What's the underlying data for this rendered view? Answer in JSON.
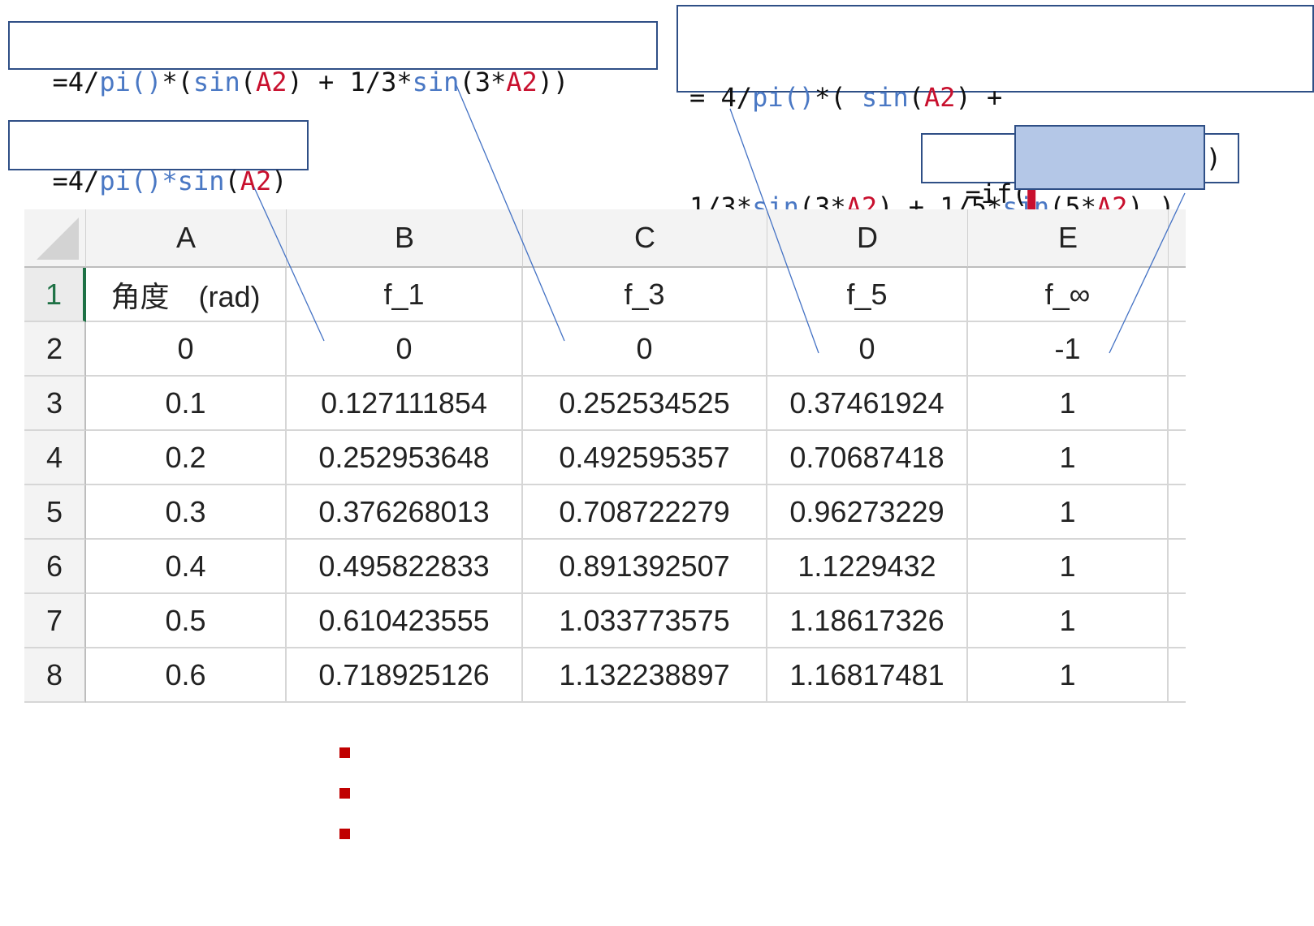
{
  "callouts": {
    "f1": [
      {
        "t": "=4/",
        "c": ""
      },
      {
        "t": "pi()*sin",
        "c": "fn"
      },
      {
        "t": "(",
        "c": ""
      },
      {
        "t": "A2",
        "c": "ref"
      },
      {
        "t": ")",
        "c": ""
      }
    ],
    "f3": [
      {
        "t": "=4/",
        "c": ""
      },
      {
        "t": "pi()",
        "c": "fn"
      },
      {
        "t": "*(",
        "c": ""
      },
      {
        "t": "sin",
        "c": "fn"
      },
      {
        "t": "(",
        "c": ""
      },
      {
        "t": "A2",
        "c": "ref"
      },
      {
        "t": ") + 1/3*",
        "c": ""
      },
      {
        "t": "sin",
        "c": "fn"
      },
      {
        "t": "(3*",
        "c": ""
      },
      {
        "t": "A2",
        "c": "ref"
      },
      {
        "t": "))",
        "c": ""
      }
    ],
    "f5_line1": [
      {
        "t": "= 4/",
        "c": ""
      },
      {
        "t": "pi()",
        "c": "fn"
      },
      {
        "t": "*( ",
        "c": ""
      },
      {
        "t": "sin",
        "c": "fn"
      },
      {
        "t": "(",
        "c": ""
      },
      {
        "t": "A2",
        "c": "ref"
      },
      {
        "t": ") +",
        "c": ""
      }
    ],
    "f5_line2": [
      {
        "t": "1/3*",
        "c": ""
      },
      {
        "t": "sin",
        "c": "fn"
      },
      {
        "t": "(3*",
        "c": ""
      },
      {
        "t": "A2",
        "c": "ref"
      },
      {
        "t": ") + 1/5*",
        "c": ""
      },
      {
        "t": "sin",
        "c": "fn"
      },
      {
        "t": "(5*",
        "c": ""
      },
      {
        "t": "A2",
        "c": "ref"
      },
      {
        "t": ") )",
        "c": ""
      }
    ],
    "finf_prefix": "=if(",
    "finf_suffix": ")"
  },
  "sheet": {
    "columns": [
      "A",
      "B",
      "C",
      "D",
      "E"
    ],
    "row_numbers": [
      "1",
      "2",
      "3",
      "4",
      "5",
      "6",
      "7",
      "8"
    ],
    "rows": [
      [
        "角度　(rad)",
        "f_1",
        "f_3",
        "f_5",
        "f_∞"
      ],
      [
        "0",
        "0",
        "0",
        "0",
        "-1"
      ],
      [
        "0.1",
        "0.127111854",
        "0.252534525",
        "0.37461924",
        "1"
      ],
      [
        "0.2",
        "0.252953648",
        "0.492595357",
        "0.70687418",
        "1"
      ],
      [
        "0.3",
        "0.376268013",
        "0.708722279",
        "0.96273229",
        "1"
      ],
      [
        "0.4",
        "0.495822833",
        "0.891392507",
        "1.1229432",
        "1"
      ],
      [
        "0.5",
        "0.610423555",
        "1.033773575",
        "1.18617326",
        "1"
      ],
      [
        "0.6",
        "0.718925126",
        "1.132238897",
        "1.16817481",
        "1"
      ]
    ],
    "active_row": "1"
  },
  "continuation": {
    "dots": 3,
    "color": "#c00000"
  },
  "colors": {
    "function": "#4a78c4",
    "reference": "#c8102e",
    "callout_border": "#2f4f86",
    "mask": "#b4c7e7",
    "active_row": "#1e7145"
  }
}
